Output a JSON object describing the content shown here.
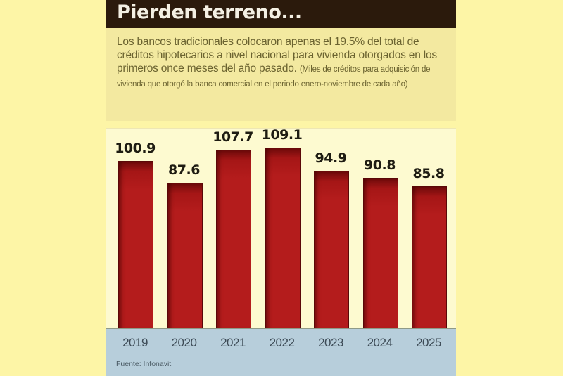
{
  "header": {
    "title": "Pierden terreno..."
  },
  "description": {
    "lead": "Los bancos tradicionales colocaron apenas el 19.5% del total de créditos hipotecarios a nivel nacional para vivienda otorgados en los primeros once meses del año pasado.",
    "note": "(Miles de créditos para adquisición de vivienda que otorgó la banca comercial en el periodo enero-noviembre de cada año)"
  },
  "footer": {
    "source": "Fuente: Infonavit"
  },
  "colors": {
    "header_bg": "#2b1a0c",
    "bar": "#b41c1c",
    "chart_bg": "#fdfad0",
    "axis_bg": "#b7cedb",
    "page_bg": "#fdf5a6"
  },
  "chart_data": {
    "type": "bar",
    "title": "Pierden terreno...",
    "subtitle": "Miles de créditos para adquisición de vivienda que otorgó la banca comercial en el periodo enero-noviembre de cada año",
    "categories": [
      "2019",
      "2020",
      "2021",
      "2022",
      "2023",
      "2024",
      "2025"
    ],
    "values": [
      100.9,
      87.6,
      107.7,
      109.1,
      94.9,
      90.8,
      85.8
    ],
    "labels": [
      "100.9",
      "87.6",
      "107.7",
      "109.1",
      "94.9",
      "90.8",
      "85.8"
    ],
    "xlabel": "",
    "ylabel": "Miles de créditos",
    "ylim": [
      0,
      115
    ],
    "grid": false,
    "legend": null,
    "source": "Fuente: Infonavit"
  }
}
